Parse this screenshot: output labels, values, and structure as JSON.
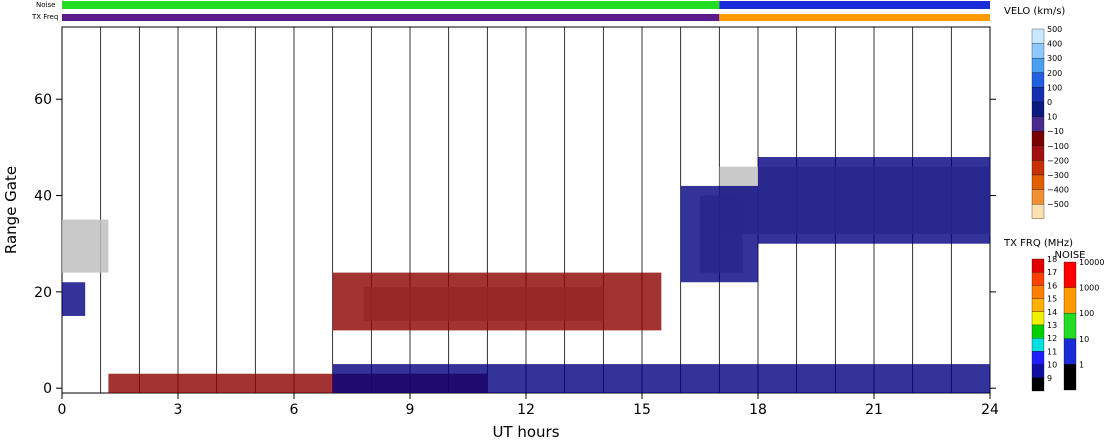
{
  "chart_data": {
    "type": "heatmap",
    "xlabel": "UT hours",
    "ylabel": "Range Gate",
    "xlim": [
      0,
      24
    ],
    "ylim": [
      -1,
      75
    ],
    "x_ticks": [
      "0",
      "3",
      "6",
      "9",
      "12",
      "15",
      "18",
      "21",
      "24"
    ],
    "x_tick_values": [
      0,
      3,
      6,
      9,
      12,
      15,
      18,
      21,
      24
    ],
    "y_ticks": [
      "0",
      "20",
      "40",
      "60"
    ],
    "y_tick_values": [
      0,
      20,
      40,
      60
    ],
    "hour_gridlines": true,
    "strips": [
      {
        "label": "Noise",
        "segments": [
          {
            "start": 0,
            "end": 17,
            "color": "#22dd22"
          },
          {
            "start": 17,
            "end": 24,
            "color": "#1a2bd8"
          }
        ]
      },
      {
        "label": "TX Freq",
        "segments": [
          {
            "start": 0,
            "end": 17,
            "color": "#5c1a8c"
          },
          {
            "start": 17,
            "end": 24,
            "color": "#ff9900"
          }
        ]
      }
    ],
    "regions": [
      {
        "kind": "ground-scatter",
        "color": "#c0c0c0",
        "x0": 0.0,
        "x1": 1.2,
        "y0": 24,
        "y1": 35
      },
      {
        "kind": "ground-scatter",
        "color": "#c0c0c0",
        "x0": 16.5,
        "x1": 17.6,
        "y0": 24,
        "y1": 40
      },
      {
        "kind": "ground-scatter",
        "color": "#c0c0c0",
        "x0": 17.0,
        "x1": 24.0,
        "y0": 32,
        "y1": 46
      },
      {
        "kind": "ground-scatter",
        "color": "#c0c0c0",
        "x0": 7.8,
        "x1": 14.0,
        "y0": 14,
        "y1": 21
      },
      {
        "kind": "velocity",
        "color": "#8b0000",
        "x0": 7.0,
        "x1": 15.5,
        "y0": 12,
        "y1": 24
      },
      {
        "kind": "velocity",
        "color": "#8b0000",
        "x0": 1.2,
        "x1": 11.0,
        "y0": -1,
        "y1": 3
      },
      {
        "kind": "velocity",
        "color": "#000080",
        "x0": 7.0,
        "x1": 24.0,
        "y0": -1,
        "y1": 5
      },
      {
        "kind": "velocity",
        "color": "#000080",
        "x0": 0.0,
        "x1": 0.6,
        "y0": 15,
        "y1": 22
      },
      {
        "kind": "velocity",
        "color": "#000080",
        "x0": 16.0,
        "x1": 18.0,
        "y0": 22,
        "y1": 42
      },
      {
        "kind": "velocity",
        "color": "#000080",
        "x0": 18.0,
        "x1": 24.0,
        "y0": 30,
        "y1": 48
      }
    ],
    "colorbars": [
      {
        "title": "VELO (km/s)",
        "ticks": [
          "500",
          "400",
          "300",
          "200",
          "100",
          "0",
          "10",
          "−10",
          "−100",
          "−200",
          "−300",
          "−400",
          "−500"
        ],
        "colors": [
          "#c8e8ff",
          "#8fc8ff",
          "#4aa0f0",
          "#2060e0",
          "#1430b0",
          "#0a1a80",
          "#4b2a90",
          "#7a0000",
          "#a01010",
          "#c83000",
          "#e06000",
          "#f09030",
          "#fbe0b0"
        ]
      },
      {
        "title": "TX FRQ (MHz)",
        "ticks": [
          "18",
          "17",
          "16",
          "15",
          "14",
          "13",
          "12",
          "11",
          "10",
          "9"
        ],
        "colors": [
          "#e00000",
          "#ff4000",
          "#ff8000",
          "#ffb000",
          "#f0f000",
          "#00d000",
          "#00e0e0",
          "#2020ff",
          "#1010a0",
          "#000000"
        ]
      },
      {
        "title": "NOISE",
        "ticks": [
          "10000",
          "1000",
          "100",
          "10",
          "1"
        ],
        "colors": [
          "#ff0000",
          "#ff9900",
          "#22dd22",
          "#1a2bd8",
          "#000000"
        ]
      }
    ]
  }
}
